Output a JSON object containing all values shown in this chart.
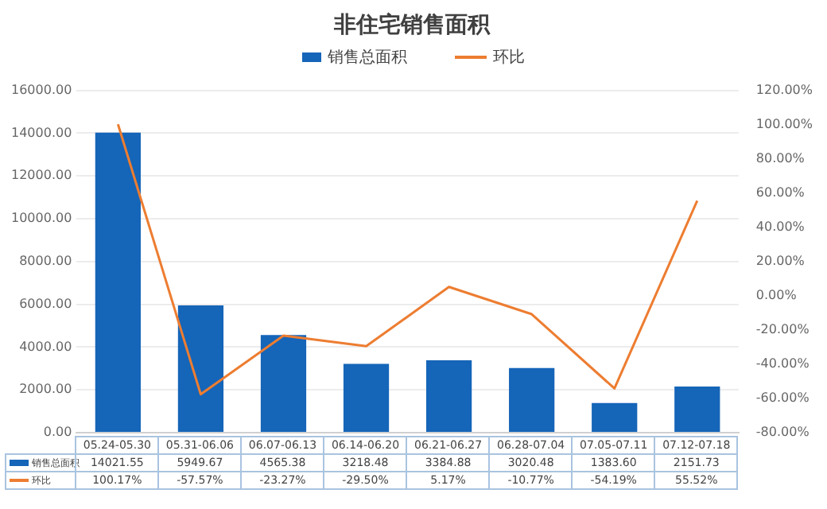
{
  "chart_data": {
    "type": "bar",
    "title": "非住宅销售面积",
    "categories": [
      "05.24-05.30",
      "05.31-06.06",
      "06.07-06.13",
      "06.14-06.20",
      "06.21-06.27",
      "06.28-07.04",
      "07.05-07.11",
      "07.12-07.18"
    ],
    "series": [
      {
        "name": "销售总面积",
        "color": "#1565b8",
        "values": [
          14021.55,
          5949.67,
          4565.38,
          3218.48,
          3384.88,
          3020.48,
          1383.6,
          2151.73
        ],
        "value_labels": [
          "14021.55",
          "5949.67",
          "4565.38",
          "3218.48",
          "3384.88",
          "3020.48",
          "1383.60",
          "2151.73"
        ]
      },
      {
        "name": "环比",
        "type": "line",
        "axis": "y2",
        "color": "#ed7d31",
        "values": [
          100.17,
          -57.57,
          -23.27,
          -29.5,
          5.17,
          -10.77,
          -54.19,
          55.52
        ],
        "value_labels": [
          "100.17%",
          "-57.57%",
          "-23.27%",
          "-29.50%",
          "5.17%",
          "-10.77%",
          "-54.19%",
          "55.52%"
        ]
      }
    ],
    "ylim": [
      0,
      16000
    ],
    "yticks": [
      {
        "value": 0,
        "label": "0.00"
      },
      {
        "value": 2000,
        "label": "2000.00"
      },
      {
        "value": 4000,
        "label": "4000.00"
      },
      {
        "value": 6000,
        "label": "6000.00"
      },
      {
        "value": 8000,
        "label": "8000.00"
      },
      {
        "value": 10000,
        "label": "10000.00"
      },
      {
        "value": 12000,
        "label": "12000.00"
      },
      {
        "value": 14000,
        "label": "14000.00"
      },
      {
        "value": 16000,
        "label": "16000.00"
      }
    ],
    "y2lim": [
      -80,
      120
    ],
    "y2ticks": [
      {
        "value": -80,
        "label": "-80.00%"
      },
      {
        "value": -60,
        "label": "-60.00%"
      },
      {
        "value": -40,
        "label": "-40.00%"
      },
      {
        "value": -20,
        "label": "-20.00%"
      },
      {
        "value": 0,
        "label": "0.00%"
      },
      {
        "value": 20,
        "label": "20.00%"
      },
      {
        "value": 40,
        "label": "40.00%"
      },
      {
        "value": 60,
        "label": "60.00%"
      },
      {
        "value": 80,
        "label": "80.00%"
      },
      {
        "value": 100,
        "label": "100.00%"
      },
      {
        "value": 120,
        "label": "120.00%"
      }
    ],
    "grid": "y",
    "legend": "top",
    "marker": "none"
  }
}
